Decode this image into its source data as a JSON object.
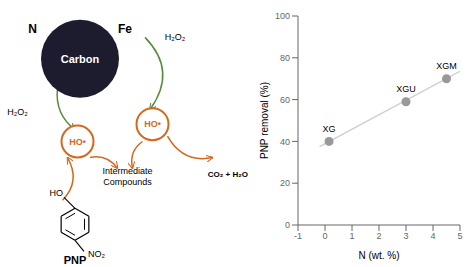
{
  "chart_data": [
    {
      "type": "diagram",
      "annotations": [
        "Carbon",
        "N",
        "Fe",
        "H₂O₂",
        "H₂O₂",
        "HO•",
        "HO•",
        "CO₂ + H₂O",
        "Intermediate\nCompounds",
        "HO",
        "NO₂",
        "PNP"
      ],
      "colors": [
        "#1c1c2e",
        "#5a8a3f",
        "#d4691e"
      ]
    },
    {
      "type": "scatter",
      "xlabel": "N (wt. %)",
      "ylabel": "PNP removal (%)",
      "series": [
        {
          "type": "scatter",
          "x": [
            0.15,
            3.0,
            4.5
          ],
          "values": [
            40,
            59,
            70
          ],
          "labels": [
            "XG",
            "XGU",
            "XGM"
          ],
          "color": "#999999"
        },
        {
          "type": "line",
          "x": [
            -0.2,
            5.0
          ],
          "values": [
            37.5,
            73.5
          ],
          "color": "#cccccc"
        }
      ],
      "xlim": [
        -1,
        5
      ],
      "xticks": [
        -1,
        0,
        1,
        2,
        3,
        4,
        5
      ],
      "ylim": [
        0,
        100
      ],
      "yticks": [
        0,
        20,
        40,
        60,
        80,
        100
      ]
    }
  ]
}
